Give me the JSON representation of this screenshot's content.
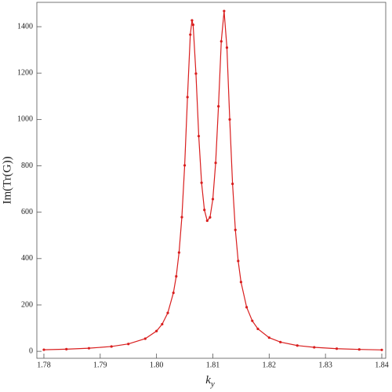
{
  "chart_data": {
    "type": "line",
    "x_label": {
      "base": "k",
      "subscript": "y"
    },
    "y_label": "Im(Tr(G))",
    "x": [
      1.78,
      1.784,
      1.788,
      1.792,
      1.795,
      1.798,
      1.8,
      1.801,
      1.802,
      1.803,
      1.8035,
      1.804,
      1.8045,
      1.805,
      1.8055,
      1.806,
      1.8063,
      1.8065,
      1.807,
      1.8075,
      1.808,
      1.8085,
      1.809,
      1.8095,
      1.81,
      1.8105,
      1.811,
      1.8115,
      1.812,
      1.8125,
      1.813,
      1.8135,
      1.814,
      1.8145,
      1.815,
      1.816,
      1.817,
      1.818,
      1.82,
      1.822,
      1.825,
      1.828,
      1.832,
      1.836,
      1.84
    ],
    "series": [
      {
        "color": "#d91e1e",
        "values": [
          6.9,
          9.4,
          13.4,
          20.9,
          31.8,
          54.5,
          87.5,
          117.2,
          165.7,
          252.5,
          323.3,
          426.2,
          578.7,
          802.0,
          1096.2,
          1365.8,
          1427.2,
          1408.3,
          1197.7,
          928.0,
          726.9,
          610.0,
          563.2,
          577.8,
          656.5,
          812.9,
          1056.7,
          1337.0,
          1467.6,
          1309.8,
          1000.1,
          722.3,
          523.7,
          389.7,
          298.8,
          190.4,
          131.7,
          96.8,
          59.0,
          39.9,
          25.0,
          17.3,
          11.5,
          8.2,
          6.2
        ]
      }
    ],
    "xlim": [
      1.77875,
      1.8407
    ],
    "ylim": [
      -30,
      1505
    ],
    "xticks": [
      1.78,
      1.79,
      {
        "value": 1.8,
        "label": "1.80"
      },
      1.81,
      1.82,
      1.83,
      1.84
    ],
    "yticks": [
      0,
      200,
      400,
      600,
      800,
      1000,
      1200,
      1400
    ]
  }
}
